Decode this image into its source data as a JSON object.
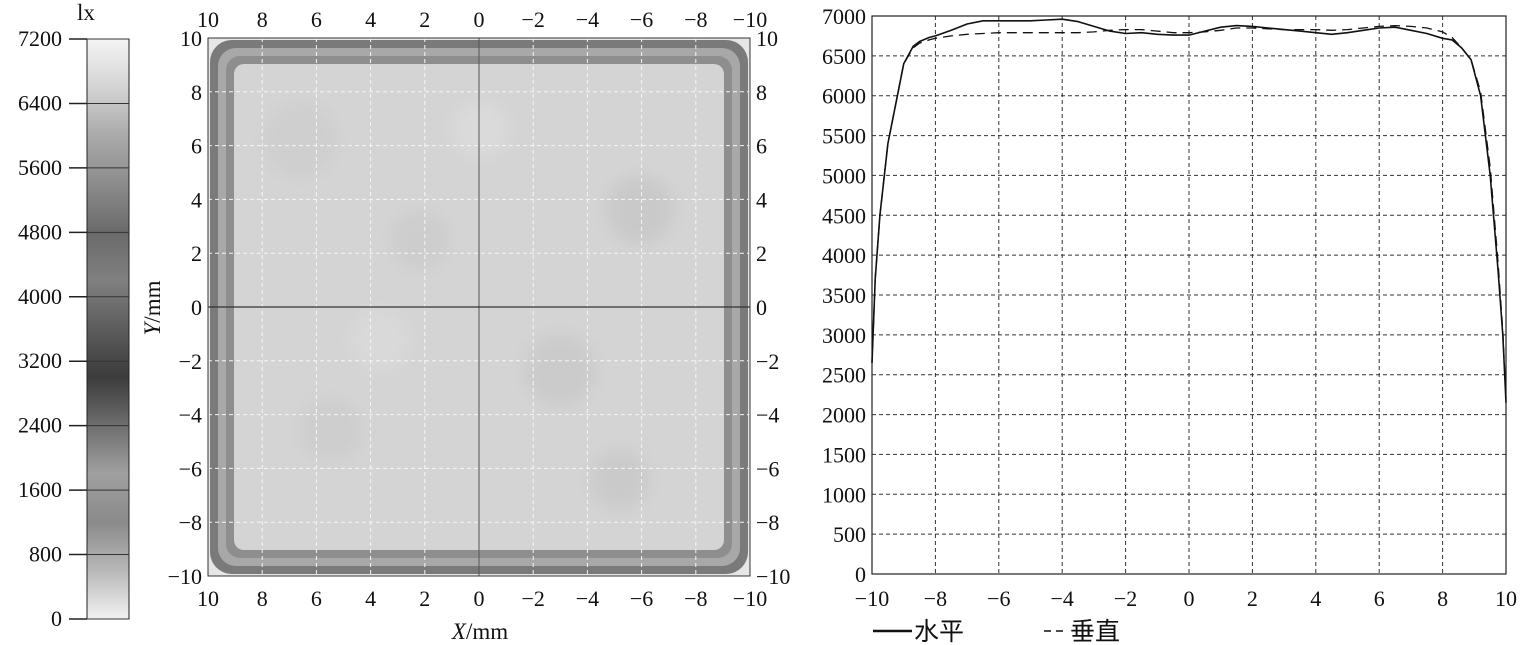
{
  "chart_data": [
    {
      "type": "colorbar",
      "unit_label": "lx",
      "ticks": [
        0,
        800,
        1600,
        2400,
        3200,
        4000,
        4800,
        5600,
        6400,
        7200
      ],
      "range": [
        0,
        7200
      ],
      "gradient": [
        "#f2f2f2",
        "#b8b8b8",
        "#8a8a8a",
        "#a0a0a0",
        "#6e6e6e",
        "#3c3c3c",
        "#5c5c5c",
        "#808080",
        "#6a6a6a",
        "#8c8c8c",
        "#aaaaaa",
        "#d4d4d4",
        "#f4f4f4"
      ]
    },
    {
      "type": "heatmap",
      "xlabel_italic": "X",
      "xlabel_unit": "/mm",
      "ylabel_italic": "Y",
      "ylabel_unit": "/mm",
      "x_ticks": [
        10,
        8,
        6,
        4,
        2,
        0,
        -2,
        -4,
        -6,
        -8,
        -10
      ],
      "y_ticks": [
        10,
        8,
        6,
        4,
        2,
        0,
        -2,
        -4,
        -6,
        -8,
        -10
      ],
      "xlim": [
        10,
        -10
      ],
      "ylim": [
        -10,
        10
      ],
      "grid": true,
      "crosshair": true,
      "description_values": {
        "center_lux": 6800,
        "edge_lux": 3500
      }
    },
    {
      "type": "line",
      "xlim": [
        -10,
        10
      ],
      "ylim": [
        0,
        7000
      ],
      "x_ticks": [
        -10,
        -8,
        -6,
        -4,
        -2,
        0,
        2,
        4,
        6,
        8,
        10
      ],
      "y_ticks": [
        0,
        500,
        1000,
        1500,
        2000,
        2500,
        3000,
        3500,
        4000,
        4500,
        5000,
        5500,
        6000,
        6500,
        7000
      ],
      "grid": true,
      "legend_position": "bottom-left",
      "series": [
        {
          "name": "水平",
          "style": "solid",
          "x": [
            -10,
            -9.9,
            -9.75,
            -9.5,
            -9.2,
            -9,
            -8.7,
            -8.5,
            -8.2,
            -8,
            -7.5,
            -7,
            -6.5,
            -6,
            -5.5,
            -5,
            -4.5,
            -4,
            -3.5,
            -3,
            -2.5,
            -2,
            -1.5,
            -1,
            -0.5,
            0,
            0.5,
            1,
            1.5,
            2,
            2.5,
            3,
            3.5,
            4,
            4.5,
            5,
            5.5,
            6,
            6.5,
            7,
            7.5,
            8,
            8.3,
            8.6,
            8.9,
            9.2,
            9.5,
            9.75,
            9.9,
            10
          ],
          "y": [
            2650,
            3700,
            4500,
            5400,
            6000,
            6400,
            6620,
            6680,
            6730,
            6750,
            6820,
            6900,
            6940,
            6940,
            6940,
            6940,
            6950,
            6960,
            6930,
            6870,
            6810,
            6780,
            6790,
            6770,
            6760,
            6760,
            6810,
            6860,
            6880,
            6870,
            6850,
            6830,
            6810,
            6790,
            6770,
            6790,
            6820,
            6850,
            6860,
            6820,
            6780,
            6720,
            6700,
            6600,
            6450,
            6000,
            5000,
            3800,
            3000,
            2150
          ]
        },
        {
          "name": "垂直",
          "style": "dashed",
          "x": [
            -10,
            -9.9,
            -9.75,
            -9.5,
            -9.2,
            -9,
            -8.7,
            -8.5,
            -8.2,
            -8,
            -7.5,
            -7,
            -6.5,
            -6,
            -5.5,
            -5,
            -4.5,
            -4,
            -3.5,
            -3,
            -2.5,
            -2,
            -1.5,
            -1,
            -0.5,
            0,
            0.5,
            1,
            1.5,
            2,
            2.5,
            3,
            3.5,
            4,
            4.5,
            5,
            5.5,
            6,
            6.5,
            7,
            7.5,
            8,
            8.3,
            8.6,
            8.9,
            9.2,
            9.5,
            9.75,
            9.9,
            10
          ],
          "y": [
            2650,
            3700,
            4500,
            5400,
            6000,
            6400,
            6600,
            6660,
            6700,
            6720,
            6750,
            6770,
            6780,
            6790,
            6790,
            6790,
            6790,
            6790,
            6790,
            6800,
            6820,
            6830,
            6830,
            6810,
            6790,
            6790,
            6800,
            6820,
            6850,
            6850,
            6840,
            6830,
            6830,
            6830,
            6820,
            6830,
            6850,
            6870,
            6880,
            6870,
            6850,
            6800,
            6730,
            6600,
            6450,
            6050,
            5100,
            3900,
            3050,
            2200
          ]
        }
      ]
    }
  ]
}
